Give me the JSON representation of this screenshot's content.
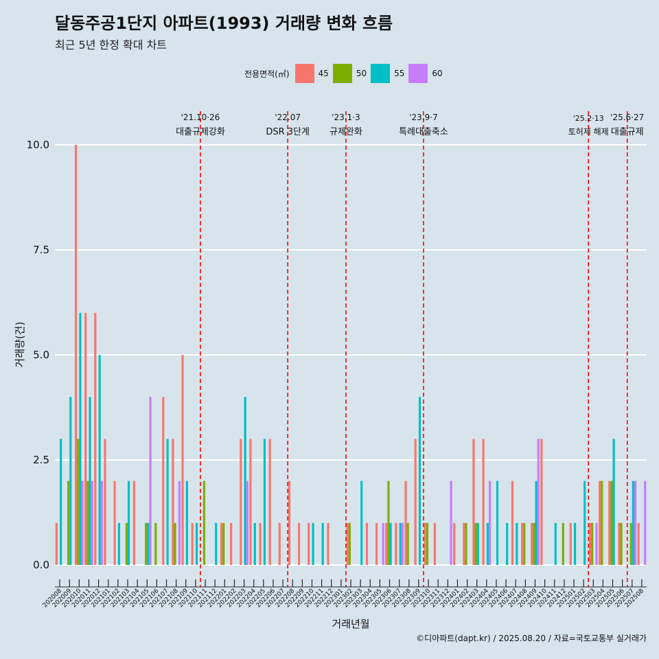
{
  "chart_data": {
    "type": "bar",
    "title": "달동주공1단지 아파트(1993) 거래량 변화 흐름",
    "subtitle": "최근 5년 한정 확대 차트",
    "xlabel": "거래년월",
    "ylabel": "거래량(건)",
    "ylim": [
      -0.5,
      11.0
    ],
    "yticks": [
      "0.0",
      "2.5",
      "5.0",
      "7.5",
      "10.0"
    ],
    "ytick_values": [
      0,
      2.5,
      5.0,
      7.5,
      10.0
    ],
    "legend_title": "전용면적(㎡)",
    "series": [
      {
        "name": "45",
        "color": "#f8766d"
      },
      {
        "name": "50",
        "color": "#7cae00"
      },
      {
        "name": "55",
        "color": "#00bfc4"
      },
      {
        "name": "60",
        "color": "#c77cff"
      }
    ],
    "categories": [
      "202008",
      "202009",
      "202010",
      "202011",
      "202012",
      "202101",
      "202102",
      "202103",
      "202104",
      "202105",
      "202106",
      "202107",
      "202108",
      "202109",
      "202110",
      "202111",
      "202112",
      "202201",
      "202202",
      "202203",
      "202204",
      "202205",
      "202206",
      "202207",
      "202208",
      "202209",
      "202210",
      "202211",
      "202212",
      "202301",
      "202302",
      "202303",
      "202304",
      "202305",
      "202306",
      "202307",
      "202308",
      "202309",
      "202310",
      "202311",
      "202312",
      "202401",
      "202402",
      "202403",
      "202404",
      "202405",
      "202406",
      "202407",
      "202408",
      "202409",
      "202410",
      "202411",
      "202412",
      "202501",
      "202502",
      "202503",
      "202504",
      "202505",
      "202506",
      "202507",
      "202508"
    ],
    "data": [
      [
        [
          1,
          0,
          3,
          0
        ]
      ],
      [
        [
          0,
          2,
          4,
          0
        ]
      ],
      [
        [
          10,
          3,
          6,
          2
        ]
      ],
      [
        [
          6,
          2,
          4,
          2
        ]
      ],
      [
        [
          6,
          0,
          5,
          2
        ]
      ],
      [
        [
          3,
          0,
          0,
          0
        ]
      ],
      [
        [
          2,
          0,
          1,
          0
        ]
      ],
      [
        [
          0,
          1,
          2,
          0
        ]
      ],
      [
        [
          2,
          0,
          0,
          0
        ]
      ],
      [
        [
          0,
          1,
          1,
          4
        ]
      ],
      [
        [
          0,
          1,
          0,
          0
        ]
      ],
      [
        [
          4,
          0,
          3,
          0
        ]
      ],
      [
        [
          3,
          1,
          0,
          2
        ]
      ],
      [
        [
          5,
          0,
          2,
          0
        ]
      ],
      [
        [
          1,
          0,
          1,
          0
        ]
      ],
      [
        [
          0,
          2,
          0,
          0
        ]
      ],
      [
        [
          0,
          0,
          1,
          0
        ]
      ],
      [
        [
          1,
          1,
          0,
          0
        ]
      ],
      [
        [
          1,
          0,
          0,
          0
        ]
      ],
      [
        [
          3,
          0,
          4,
          2
        ]
      ],
      [
        [
          3,
          0,
          1,
          0
        ]
      ],
      [
        [
          1,
          0,
          3,
          0
        ]
      ],
      [
        [
          3,
          0,
          0,
          0
        ]
      ],
      [
        [
          1,
          0,
          0,
          0
        ]
      ],
      [
        [
          2,
          0,
          0,
          0
        ]
      ],
      [
        [
          1,
          0,
          0,
          0
        ]
      ],
      [
        [
          1,
          0,
          1,
          0
        ]
      ],
      [
        [
          0,
          0,
          1,
          0
        ]
      ],
      [
        [
          1,
          0,
          0,
          0
        ]
      ],
      [
        [
          0,
          0,
          0,
          0
        ]
      ],
      [
        [
          1,
          1,
          0,
          0
        ]
      ],
      [
        [
          0,
          0,
          2,
          0
        ]
      ],
      [
        [
          1,
          0,
          0,
          0
        ]
      ],
      [
        [
          1,
          0,
          0,
          1
        ]
      ],
      [
        [
          1,
          2,
          1,
          0
        ]
      ],
      [
        [
          1,
          0,
          1,
          1
        ]
      ],
      [
        [
          2,
          1,
          0,
          0
        ]
      ],
      [
        [
          3,
          0,
          4,
          0
        ]
      ],
      [
        [
          1,
          1,
          0,
          0
        ]
      ],
      [
        [
          1,
          0,
          0,
          0
        ]
      ],
      [
        [
          0,
          0,
          0,
          2
        ]
      ],
      [
        [
          1,
          0,
          0,
          0
        ]
      ],
      [
        [
          1,
          1,
          0,
          0
        ]
      ],
      [
        [
          3,
          1,
          1,
          0
        ]
      ],
      [
        [
          3,
          0,
          1,
          2
        ]
      ],
      [
        [
          0,
          0,
          2,
          0
        ]
      ],
      [
        [
          0,
          0,
          1,
          0
        ]
      ],
      [
        [
          2,
          0,
          1,
          0
        ]
      ],
      [
        [
          1,
          1,
          0,
          0
        ]
      ],
      [
        [
          1,
          1,
          2,
          3
        ]
      ],
      [
        [
          3,
          0,
          0,
          0
        ]
      ],
      [
        [
          0,
          0,
          1,
          0
        ]
      ],
      [
        [
          0,
          1,
          0,
          0
        ]
      ],
      [
        [
          1,
          0,
          1,
          0
        ]
      ],
      [
        [
          0,
          0,
          2,
          0
        ]
      ],
      [
        [
          1,
          1,
          0,
          1
        ]
      ],
      [
        [
          2,
          2,
          0,
          0
        ]
      ],
      [
        [
          2,
          2,
          3,
          0
        ]
      ],
      [
        [
          1,
          1,
          0,
          0
        ]
      ],
      [
        [
          0,
          1,
          2,
          2
        ]
      ],
      [
        [
          1,
          0,
          0,
          2
        ]
      ]
    ],
    "events": [
      {
        "after": "202110",
        "date": "'21.10·26",
        "label": "대출규제강화"
      },
      {
        "after": "202207",
        "date": "'22.07",
        "label": "DSR 3단계"
      },
      {
        "after": "202301",
        "date": "'23.1·3",
        "label": "규제완화"
      },
      {
        "after": "202309",
        "date": "'23.9·7",
        "label": "특례대출축소"
      },
      {
        "after": "202502",
        "date": "'25.2·13",
        "label": "토허제 해제"
      },
      {
        "after": "202506",
        "date": "'25.6·27",
        "label": "대출규제"
      }
    ]
  },
  "caption": "©디아파트(dapt.kr) / 2025.08.20 / 자료=국토교통부 실거래가"
}
